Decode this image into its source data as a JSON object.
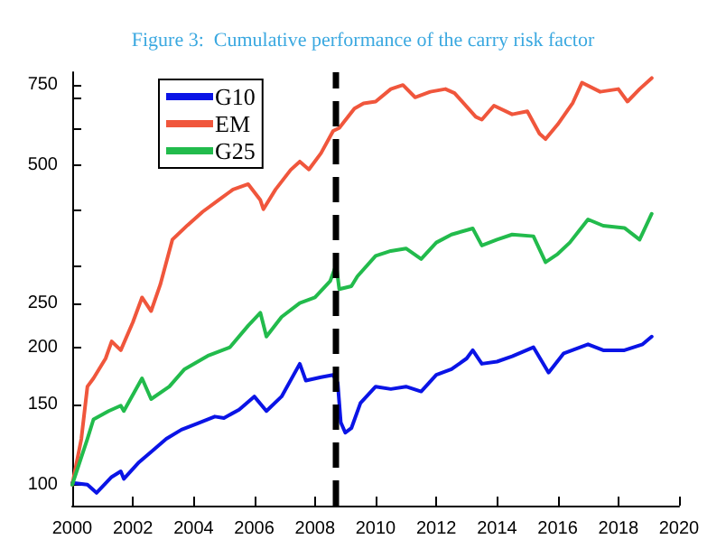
{
  "chart_data": {
    "type": "line",
    "title": "Figure 3:  Cumulative performance of the carry risk factor",
    "log": "y",
    "grid": false,
    "legend": "top left",
    "marker": "none",
    "line_style": "solid",
    "xlim": [
      2000,
      2020
    ],
    "xticks": [
      2000,
      2002,
      2004,
      2006,
      2008,
      2010,
      2012,
      2014,
      2016,
      2018,
      2020
    ],
    "ylim": [
      90,
      800
    ],
    "yticks": [
      100,
      150,
      200,
      250,
      {
        "value": 300,
        "label": null
      },
      {
        "value": 400,
        "label": null
      },
      500,
      {
        "value": 600,
        "label": null
      },
      {
        "value": 700,
        "label": null
      },
      750
    ],
    "ref_lines": [
      {
        "axis": "x",
        "value": 2008.7,
        "color": "#000000",
        "line_style": "dashed"
      }
    ],
    "series": [
      {
        "name": "G10",
        "color": "#0a14e6",
        "x": [
          2000,
          2000.5,
          2000.8,
          2001.3,
          2001.6,
          2001.7,
          2002.2,
          2002.6,
          2003.1,
          2003.6,
          2004.1,
          2004.7,
          2005.0,
          2005.5,
          2006.0,
          2006.4,
          2006.9,
          2007.5,
          2007.7,
          2008.2,
          2008.6,
          2008.75,
          2008.85,
          2009.0,
          2009.2,
          2009.5,
          2010.0,
          2010.5,
          2011.0,
          2011.5,
          2012.0,
          2012.5,
          2013.0,
          2013.2,
          2013.5,
          2014.0,
          2014.5,
          2015.2,
          2015.7,
          2016.2,
          2017.0,
          2017.5,
          2018.2,
          2018.8,
          2019.1
        ],
        "values": [
          101,
          100,
          96,
          104,
          107,
          103,
          112,
          118,
          126,
          132,
          136,
          141,
          140,
          146,
          156,
          145,
          156,
          184,
          169,
          172,
          174,
          167,
          137,
          130,
          133,
          151,
          164,
          162,
          164,
          160,
          174,
          179,
          189,
          197,
          184,
          186,
          191,
          200,
          176,
          194,
          203,
          197,
          197,
          203,
          211
        ]
      },
      {
        "name": "EM",
        "color": "#f0563c",
        "x": [
          2000,
          2000.3,
          2000.5,
          2000.7,
          2001.1,
          2001.3,
          2001.6,
          2002.0,
          2002.3,
          2002.6,
          2002.9,
          2003.3,
          2003.8,
          2004.3,
          2004.8,
          2005.3,
          2005.8,
          2006.2,
          2006.3,
          2006.7,
          2007.2,
          2007.5,
          2007.8,
          2008.2,
          2008.6,
          2008.8,
          2009.3,
          2009.6,
          2010.0,
          2010.5,
          2010.9,
          2011.3,
          2011.8,
          2012.3,
          2012.6,
          2013.3,
          2013.5,
          2013.9,
          2014.5,
          2015.0,
          2015.4,
          2015.6,
          2016.0,
          2016.5,
          2016.8,
          2017.4,
          2018.0,
          2018.3,
          2018.7,
          2019.1
        ],
        "values": [
          100,
          126,
          164,
          171,
          189,
          206,
          197,
          227,
          257,
          240,
          274,
          344,
          370,
          396,
          419,
          443,
          455,
          420,
          401,
          443,
          489,
          510,
          490,
          532,
          595,
          604,
          666,
          684,
          690,
          735,
          750,
          705,
          725,
          735,
          720,
          639,
          630,
          676,
          647,
          657,
          587,
          571,
          615,
          686,
          759,
          725,
          735,
          690,
          735,
          777
        ]
      },
      {
        "name": "G25",
        "color": "#22bb4c",
        "x": [
          2000,
          2000.5,
          2000.7,
          2001.2,
          2001.6,
          2001.7,
          2002.3,
          2002.6,
          2003.2,
          2003.7,
          2004.5,
          2005.2,
          2005.8,
          2006.2,
          2006.4,
          2006.9,
          2007.5,
          2008.0,
          2008.5,
          2008.7,
          2008.8,
          2009.2,
          2009.4,
          2010.0,
          2010.5,
          2011.0,
          2011.5,
          2012.0,
          2012.5,
          2013.2,
          2013.5,
          2014.0,
          2014.5,
          2015.2,
          2015.6,
          2016.0,
          2016.4,
          2017.0,
          2017.5,
          2018.2,
          2018.7,
          2019.1
        ],
        "values": [
          100,
          126,
          139,
          145,
          149,
          145,
          171,
          154,
          164,
          179,
          192,
          200,
          223,
          238,
          211,
          233,
          250,
          257,
          279,
          303,
          268,
          272,
          286,
          317,
          325,
          329,
          312,
          339,
          353,
          364,
          334,
          344,
          353,
          350,
          307,
          320,
          339,
          381,
          369,
          365,
          344,
          392
        ]
      }
    ]
  }
}
